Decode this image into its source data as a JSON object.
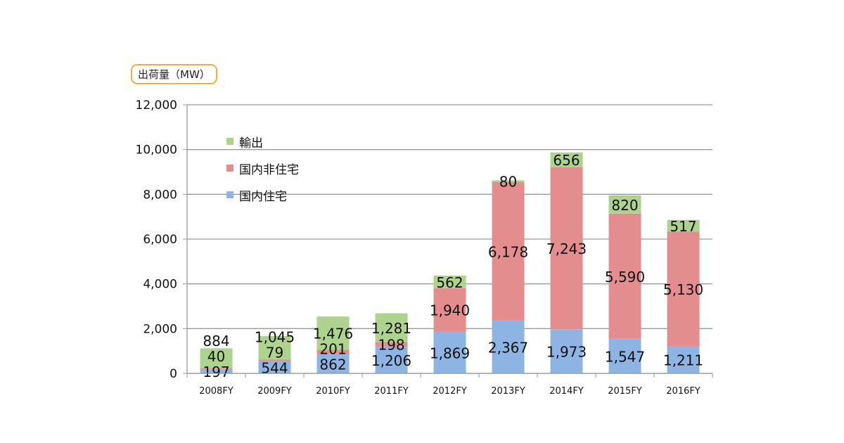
{
  "chart_data": {
    "type": "bar",
    "stacked": true,
    "ylabel": "出荷量（MW）",
    "ylim": [
      0,
      12000
    ],
    "yticks": [
      0,
      2000,
      4000,
      6000,
      8000,
      10000,
      12000
    ],
    "ytick_labels": [
      "0",
      "2,000",
      "4,000",
      "6,000",
      "8,000",
      "10,000",
      "12,000"
    ],
    "grid": true,
    "legend_position": "top-left",
    "categories": [
      "2008FY",
      "2009FY",
      "2010FY",
      "2011FY",
      "2012FY",
      "2013FY",
      "2014FY",
      "2015FY",
      "2016FY"
    ],
    "series": [
      {
        "name": "国内住宅",
        "color": "#8db4e2",
        "values": [
          197,
          544,
          862,
          1206,
          1869,
          2367,
          1973,
          1547,
          1211
        ],
        "labels": [
          "197",
          "544",
          "862",
          "1,206",
          "1,869",
          "2,367",
          "1,973",
          "1,547",
          "1,211"
        ]
      },
      {
        "name": "国内非住宅",
        "color": "#e38d8e",
        "values": [
          40,
          79,
          201,
          198,
          1940,
          6178,
          7243,
          5590,
          5130
        ],
        "labels": [
          "40",
          "79",
          "201",
          "198",
          "1,940",
          "6,178",
          "7,243",
          "5,590",
          "5,130"
        ]
      },
      {
        "name": "輸出",
        "color": "#add38f",
        "values": [
          884,
          1045,
          1476,
          1281,
          562,
          80,
          656,
          820,
          517
        ],
        "labels": [
          "884",
          "1,045",
          "1,476",
          "1,281",
          "562",
          "80",
          "656",
          "820",
          "517"
        ]
      }
    ],
    "legend_order": [
      "輸出",
      "国内非住宅",
      "国内住宅"
    ]
  }
}
